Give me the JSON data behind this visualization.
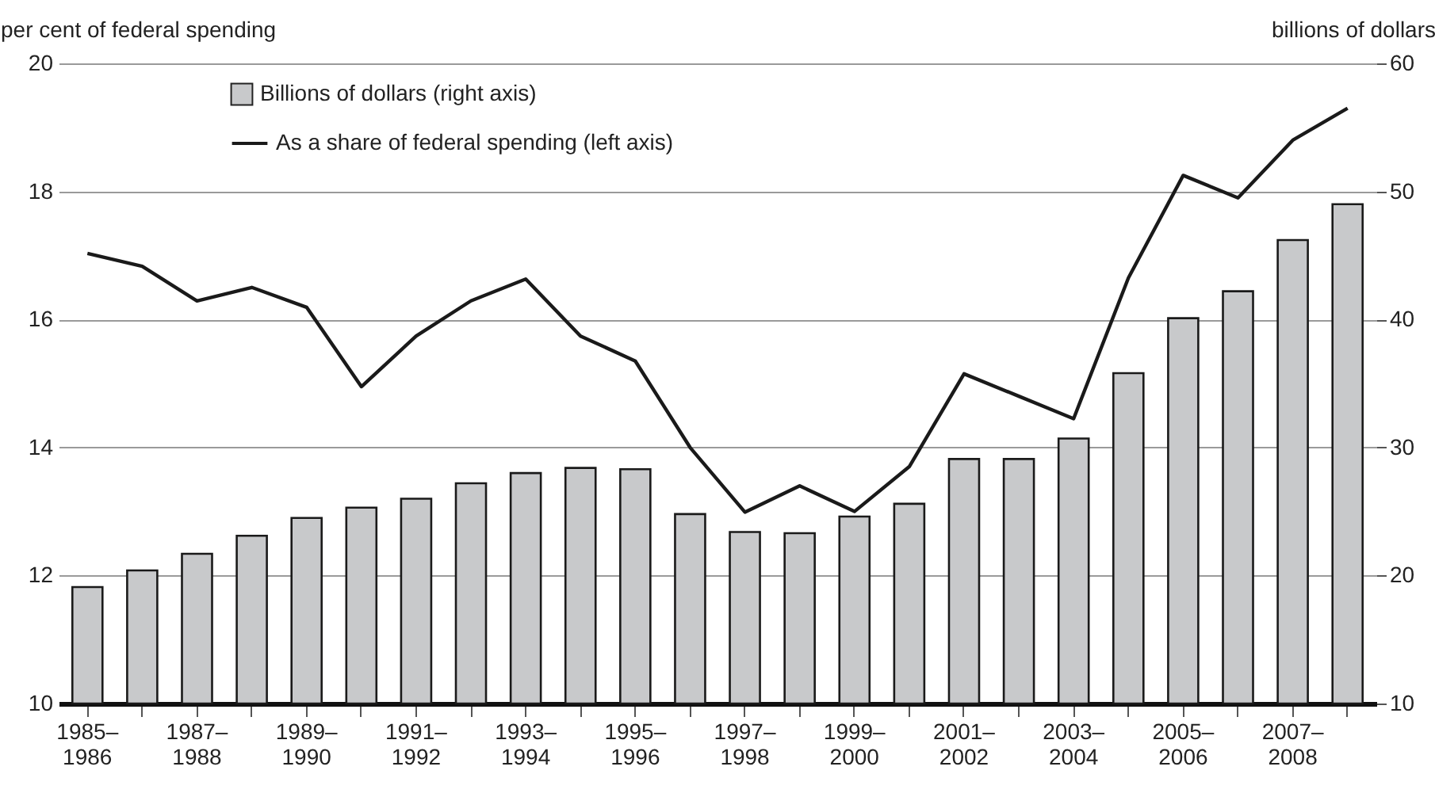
{
  "chart_data": {
    "type": "bar",
    "ylabel": "per cent of federal spending",
    "y2label": "billions of dollars",
    "categories": [
      "1985–1986",
      null,
      "1987–1988",
      null,
      "1989–1990",
      null,
      "1991–1992",
      null,
      "1993–1994",
      null,
      "1995–1996",
      null,
      "1997–1998",
      null,
      "1999–2000",
      null,
      "2001–2002",
      null,
      "2003–2004",
      null,
      "2005–2006",
      null,
      "2007–2008",
      null
    ],
    "series": [
      {
        "name": "Billions of dollars (right axis)",
        "axis": "y2",
        "color": "#c8c9cb",
        "values": [
          19.1,
          20.4,
          21.7,
          23.1,
          24.5,
          25.3,
          26.0,
          27.2,
          28.0,
          28.4,
          28.3,
          24.8,
          23.4,
          23.3,
          24.6,
          25.6,
          29.1,
          29.1,
          30.7,
          35.8,
          40.1,
          42.2,
          46.2,
          49.0
        ]
      },
      {
        "name": "As a share of federal spending (left axis)",
        "type": "line",
        "color": "#1a1a1a",
        "values": [
          17.03,
          16.83,
          16.29,
          16.5,
          16.19,
          14.95,
          15.74,
          16.29,
          16.63,
          15.74,
          15.35,
          14.0,
          12.99,
          13.4,
          13.0,
          13.7,
          15.15,
          14.8,
          14.45,
          16.65,
          18.25,
          17.9,
          18.8,
          19.3
        ]
      }
    ],
    "ylim": [
      10,
      20
    ],
    "yticks": [
      10,
      12,
      14,
      16,
      18,
      20
    ],
    "y2lim": [
      10,
      60
    ],
    "y2ticks": [
      10,
      20,
      30,
      40,
      50,
      60
    ],
    "grid": "y",
    "legend": "top left"
  }
}
